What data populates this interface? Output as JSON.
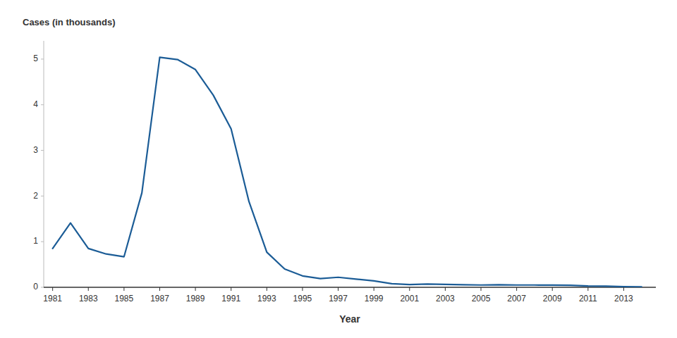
{
  "chart_data": {
    "type": "line",
    "x": [
      1981,
      1982,
      1983,
      1984,
      1985,
      1986,
      1987,
      1988,
      1989,
      1990,
      1991,
      1992,
      1993,
      1994,
      1995,
      1996,
      1997,
      1998,
      1999,
      2000,
      2001,
      2002,
      2003,
      2004,
      2005,
      2006,
      2007,
      2008,
      2009,
      2010,
      2011,
      2012,
      2013,
      2014
    ],
    "values": [
      0.85,
      1.41,
      0.85,
      0.73,
      0.67,
      2.07,
      5.04,
      4.99,
      4.77,
      4.21,
      3.47,
      1.88,
      0.77,
      0.4,
      0.25,
      0.19,
      0.22,
      0.18,
      0.14,
      0.08,
      0.06,
      0.07,
      0.065,
      0.055,
      0.05,
      0.055,
      0.05,
      0.05,
      0.048,
      0.045,
      0.03,
      0.025,
      0.015,
      0.01
    ],
    "color": "#1b5c96",
    "xlabel": "Year",
    "ylabel": "Cases (in thousands)",
    "xlim": [
      1980.5,
      2014.8
    ],
    "xticks": [
      1981,
      1983,
      1985,
      1987,
      1989,
      1991,
      1993,
      1995,
      1997,
      1999,
      2001,
      2003,
      2005,
      2007,
      2009,
      2011,
      2013
    ],
    "ylim": [
      0,
      5.4
    ],
    "yticks": [
      0,
      1,
      2,
      3,
      4,
      5
    ],
    "grid": false
  }
}
